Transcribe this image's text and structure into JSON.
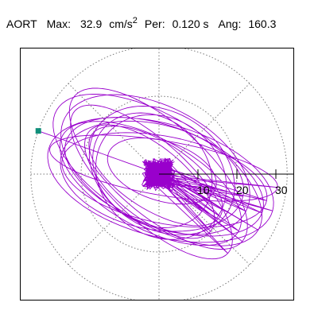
{
  "header": {
    "channel": "AORT",
    "max_label": "Max:",
    "max_value": "32.9",
    "max_unit": "cm/s",
    "max_unit_exp": "2",
    "per_label": "Per:",
    "per_value": "0.120 s",
    "ang_label": "Ang:",
    "ang_value": "160.3"
  },
  "chart_data": {
    "type": "scatter",
    "plot_kind": "polar trajectory",
    "radial_ticks": [
      10,
      20,
      30
    ],
    "radial_tick_labels": [
      "10",
      "20",
      "30"
    ],
    "grid_radii": [
      20,
      32.9
    ],
    "angular_grid_step_deg": 45,
    "grid_style": "dotted",
    "series_color": "#9900cc",
    "end_marker_color": "#108f7a",
    "max_magnitude": 32.9,
    "max_angle_deg": 160.3
  }
}
